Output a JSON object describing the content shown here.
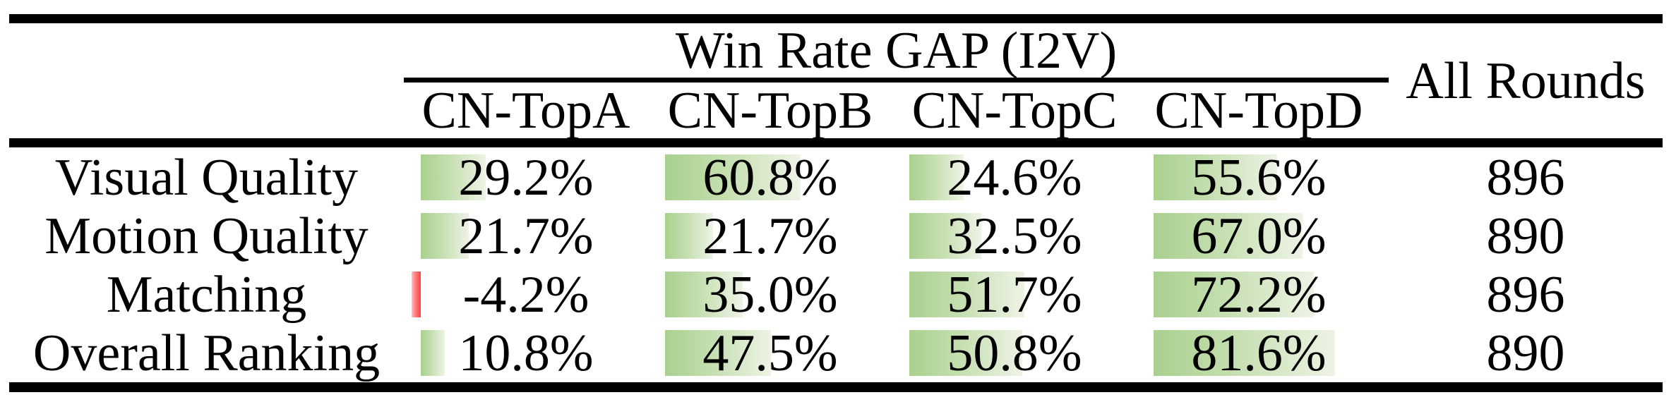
{
  "table": {
    "group_header": "Win Rate GAP (I2V)",
    "columns": [
      "CN-TopA",
      "CN-TopB",
      "CN-TopC",
      "CN-TopD"
    ],
    "all_rounds_header": "All Rounds",
    "rows": [
      {
        "label": "Visual Quality",
        "values": [
          29.2,
          60.8,
          24.6,
          55.6
        ],
        "display": [
          "29.2%",
          "60.8%",
          "24.6%",
          "55.6%"
        ],
        "all_rounds": "896"
      },
      {
        "label": "Motion Quality",
        "values": [
          21.7,
          21.7,
          32.5,
          67.0
        ],
        "display": [
          "21.7%",
          "21.7%",
          "32.5%",
          "67.0%"
        ],
        "all_rounds": "890"
      },
      {
        "label": "Matching",
        "values": [
          -4.2,
          35.0,
          51.7,
          72.2
        ],
        "display": [
          "-4.2%",
          "35.0%",
          "51.7%",
          "72.2%"
        ],
        "all_rounds": "896"
      },
      {
        "label": "Overall Ranking",
        "values": [
          10.8,
          47.5,
          50.8,
          81.6
        ],
        "display": [
          "10.8%",
          "47.5%",
          "50.8%",
          "81.6%"
        ],
        "all_rounds": "890"
      }
    ]
  },
  "colors": {
    "positive_bar_start": "#a9d08e",
    "positive_bar_end": "#eef3e6",
    "negative_bar_start": "#ff4040",
    "negative_bar_end": "#ffc4c4",
    "rule": "#000000",
    "background": "#ffffff"
  },
  "chart_data": {
    "type": "table",
    "title": "Win Rate GAP (I2V)",
    "columns": [
      "CN-TopA",
      "CN-TopB",
      "CN-TopC",
      "CN-TopD",
      "All Rounds"
    ],
    "row_labels": [
      "Visual Quality",
      "Motion Quality",
      "Matching",
      "Overall Ranking"
    ],
    "series": [
      {
        "name": "CN-TopA",
        "values": [
          29.2,
          21.7,
          -4.2,
          10.8
        ]
      },
      {
        "name": "CN-TopB",
        "values": [
          60.8,
          21.7,
          35.0,
          47.5
        ]
      },
      {
        "name": "CN-TopC",
        "values": [
          24.6,
          32.5,
          51.7,
          50.8
        ]
      },
      {
        "name": "CN-TopD",
        "values": [
          55.6,
          67.0,
          72.2,
          81.6
        ]
      }
    ],
    "all_rounds": [
      896,
      890,
      896,
      890
    ],
    "units": "percent win-rate gap, green in-cell bars proportional to value, negative values shown as red bar extending left of origin"
  }
}
